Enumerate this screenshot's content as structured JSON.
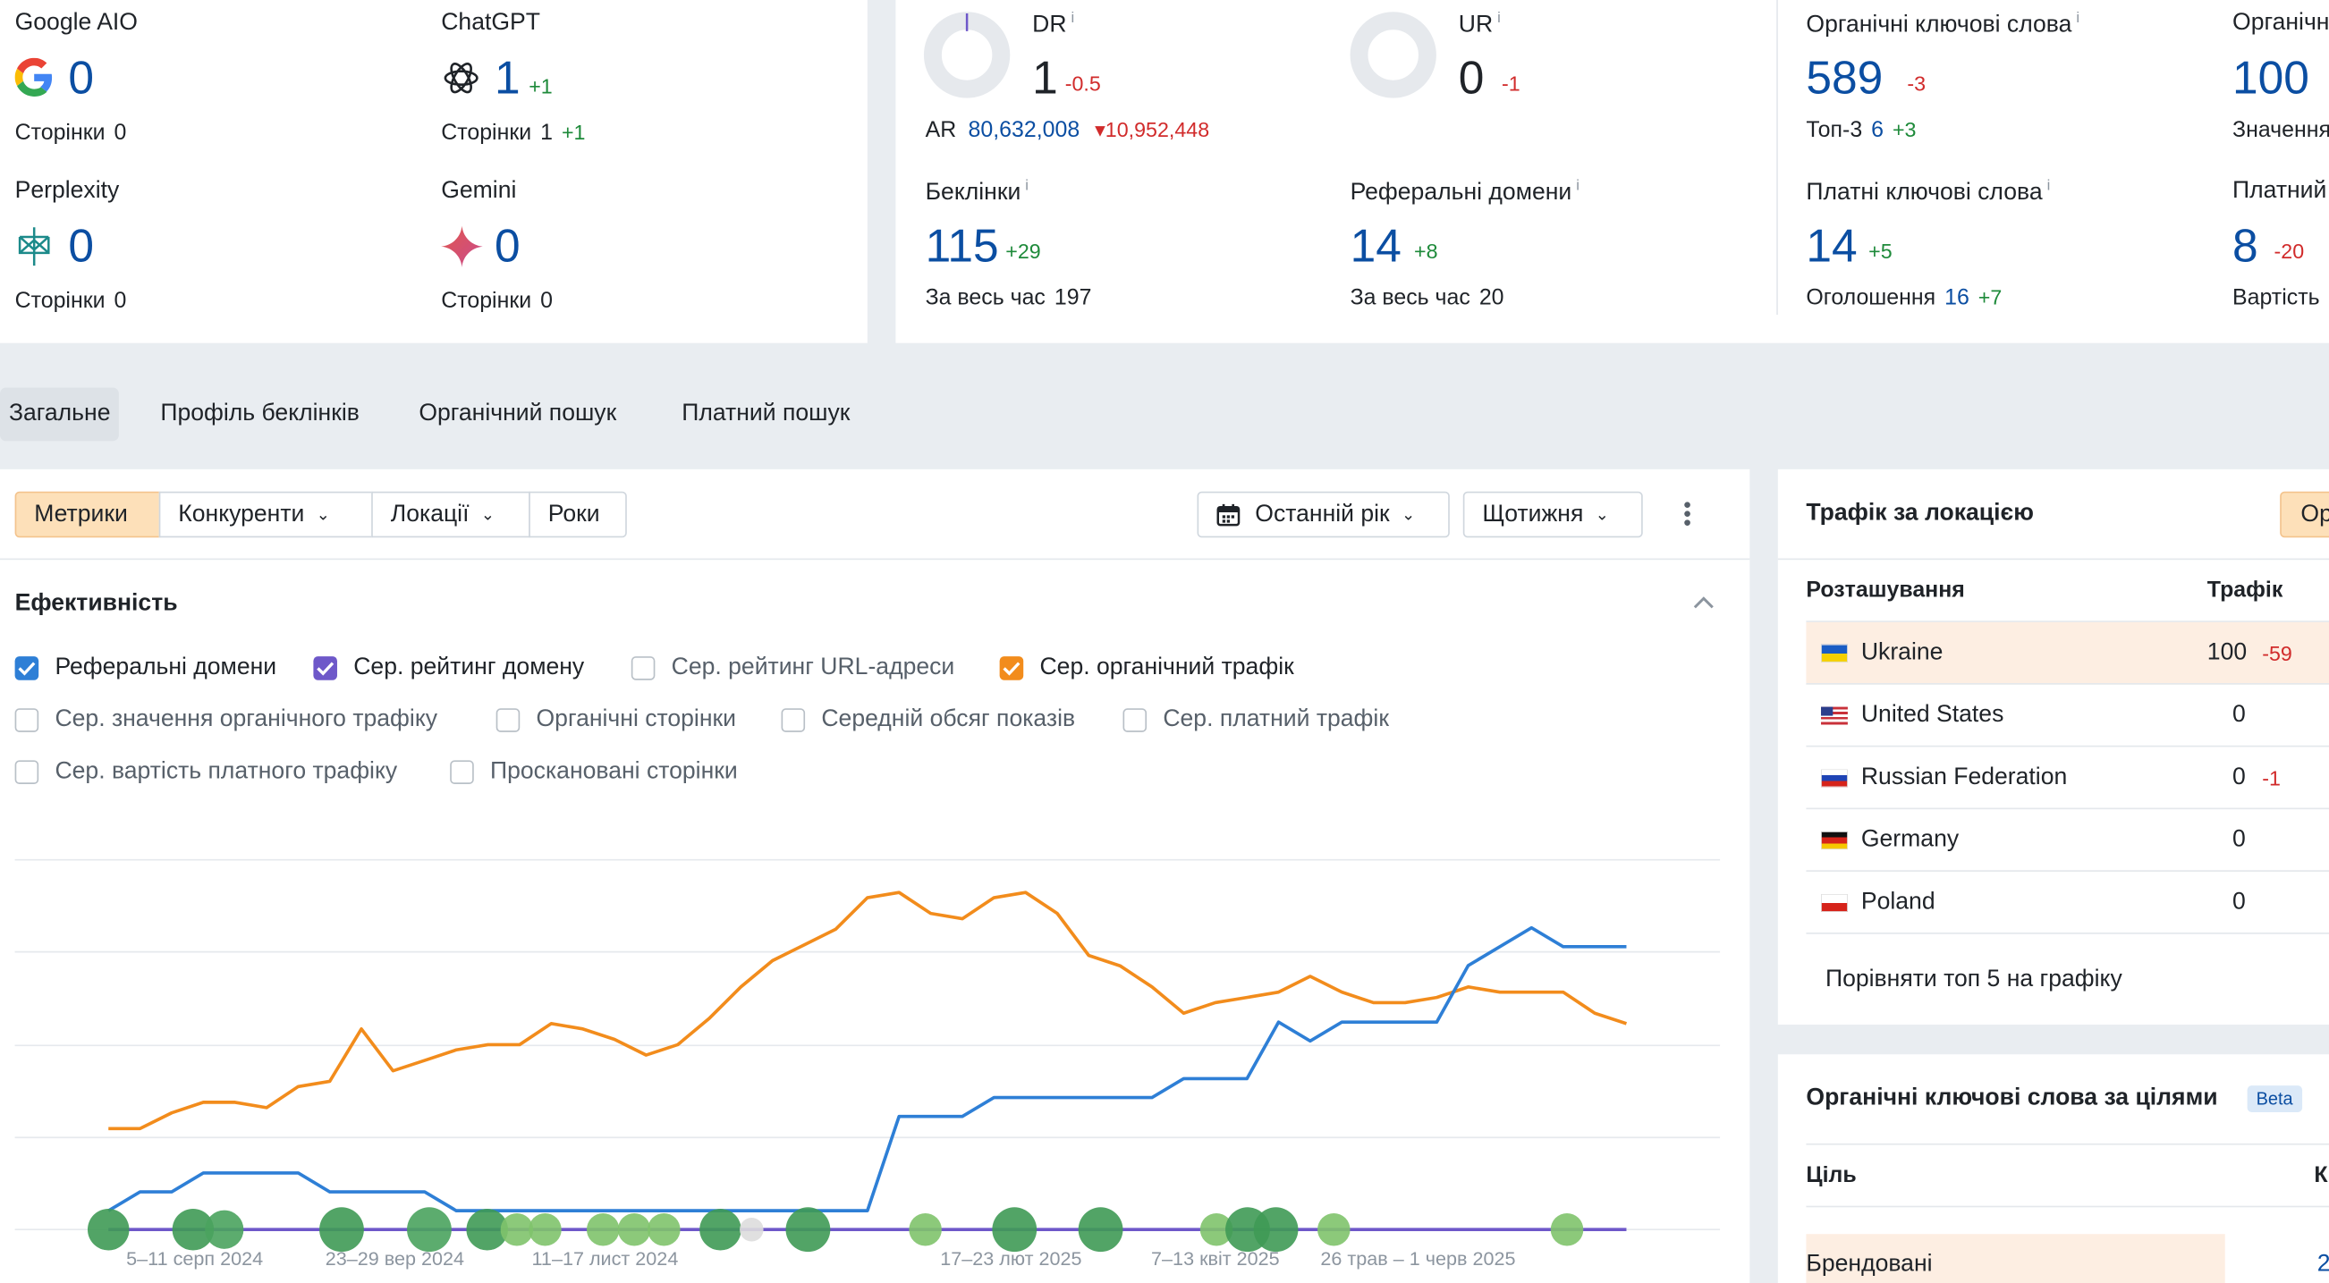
{
  "ai": {
    "google": {
      "label": "Google AIO",
      "value": "0",
      "pages_label": "Сторінки",
      "pages": "0"
    },
    "chatgpt": {
      "label": "ChatGPT",
      "value": "1",
      "delta": "+1",
      "pages_label": "Сторінки",
      "pages": "1",
      "pages_delta": "+1"
    },
    "perplexity": {
      "label": "Perplexity",
      "value": "0",
      "pages_label": "Сторінки",
      "pages": "0"
    },
    "gemini": {
      "label": "Gemini",
      "value": "0",
      "pages_label": "Сторінки",
      "pages": "0"
    }
  },
  "metrics": {
    "dr": {
      "label": "DR",
      "info": "i",
      "value": "1",
      "delta": "-0.5"
    },
    "ur": {
      "label": "UR",
      "info": "i",
      "value": "0",
      "delta": "-1"
    },
    "ar": {
      "label": "AR",
      "value": "80,632,008",
      "delta": "10,952,448"
    },
    "backlinks": {
      "label": "Беклінки",
      "info": "i",
      "value": "115",
      "delta": "+29",
      "all_time_label": "За весь час",
      "all_time": "197"
    },
    "ref_domains": {
      "label": "Реферальні домени",
      "info": "i",
      "value": "14",
      "delta": "+8",
      "all_time_label": "За весь час",
      "all_time": "20"
    },
    "organic_kw": {
      "label": "Органічні ключові слова",
      "info": "i",
      "value": "589",
      "delta": "-3",
      "top3_label": "Топ-3",
      "top3": "6",
      "top3_delta": "+3"
    },
    "organic_traffic": {
      "label": "Органічн",
      "value": "100",
      "sub": "Значення"
    },
    "paid_kw": {
      "label": "Платні ключові слова",
      "info": "i",
      "value": "14",
      "delta": "+5",
      "ads_label": "Оголошення",
      "ads": "16",
      "ads_delta": "+7"
    },
    "paid_traffic": {
      "label": "Платний",
      "value": "8",
      "delta": "-20",
      "sub": "Вартість"
    }
  },
  "tabs": [
    "Загальне",
    "Профіль беклінків",
    "Органічний пошук",
    "Платний пошук"
  ],
  "toolbar": {
    "segments": [
      "Метрики",
      "Конкуренти",
      "Локації",
      "Роки"
    ],
    "period": "Останній рік",
    "interval": "Щотижня"
  },
  "performance": {
    "title": "Ефективність",
    "checkboxes": [
      {
        "label": "Реферальні домени",
        "checked": true,
        "color": "#2e7fd6"
      },
      {
        "label": "Сер. рейтинг домену",
        "checked": true,
        "color": "#6e58c9"
      },
      {
        "label": "Сер. рейтинг URL-адреси",
        "checked": false
      },
      {
        "label": "Сер. органічний трафік",
        "checked": true,
        "color": "#f28c1c"
      },
      {
        "label": "Сер. значення органічного трафіку",
        "checked": false
      },
      {
        "label": "Органічні сторінки",
        "checked": false
      },
      {
        "label": "Середній обсяг показів",
        "checked": false
      },
      {
        "label": "Сер. платний трафік",
        "checked": false
      },
      {
        "label": "Сер. вартість платного трафіку",
        "checked": false
      },
      {
        "label": "Проскановані сторінки",
        "checked": false
      }
    ]
  },
  "chart_data": {
    "type": "line",
    "x_tick_labels": [
      "5–11 серп 2024",
      "23–29 вер 2024",
      "11–17 лист 2024",
      "17–23 лют 2025",
      "7–13 квіт 2025",
      "26 трав – 1 черв 2025"
    ],
    "series": [
      {
        "name": "Сер. органічний трафік",
        "color": "#f28c1c",
        "values": [
          55,
          55,
          58,
          60,
          60,
          59,
          63,
          64,
          74,
          66,
          68,
          70,
          71,
          71,
          75,
          74,
          72,
          69,
          71,
          76,
          82,
          87,
          90,
          93,
          99,
          100,
          96,
          95,
          99,
          100,
          96,
          88,
          86,
          82,
          77,
          79,
          80,
          81,
          84,
          81,
          79,
          79,
          80,
          82,
          81,
          81,
          81,
          77,
          75
        ]
      },
      {
        "name": "Реферальні домени",
        "color": "#2e7fd6",
        "values": [
          1,
          2,
          2,
          3,
          3,
          3,
          3,
          2,
          2,
          2,
          2,
          1,
          1,
          1,
          1,
          1,
          1,
          1,
          1,
          1,
          1,
          1,
          1,
          1,
          1,
          6,
          6,
          6,
          7,
          7,
          7,
          7,
          7,
          7,
          8,
          8,
          8,
          11,
          10,
          11,
          11,
          11,
          11,
          14,
          15,
          16,
          15,
          15,
          15
        ]
      },
      {
        "name": "Сер. рейтинг домену",
        "color": "#6e58c9",
        "values": [
          0,
          0,
          0,
          0,
          0,
          0,
          0,
          0,
          0,
          0,
          0,
          0,
          0,
          0,
          0,
          0,
          0,
          0,
          0,
          0,
          0,
          0,
          0,
          0,
          0,
          0,
          0,
          0,
          0,
          0,
          0,
          0,
          0,
          0,
          0,
          0,
          0,
          0,
          0,
          0,
          0,
          0,
          0,
          0,
          0,
          0,
          0,
          0,
          0
        ]
      }
    ]
  },
  "traffic_location": {
    "title": "Трафік за локацією",
    "filter_btn": "Ор",
    "col_location": "Розташування",
    "col_traffic": "Трафік",
    "rows": [
      {
        "country": "Ukraine",
        "traffic": "100",
        "delta": "-59"
      },
      {
        "country": "United States",
        "traffic": "0",
        "delta": ""
      },
      {
        "country": "Russian Federation",
        "traffic": "0",
        "delta": "-1"
      },
      {
        "country": "Germany",
        "traffic": "0",
        "delta": ""
      },
      {
        "country": "Poland",
        "traffic": "0",
        "delta": ""
      }
    ],
    "compare_link": "Порівняти топ 5 на графіку"
  },
  "kw_intents": {
    "title": "Органічні ключові слова за цілями",
    "badge": "Beta",
    "col_intent": "Ціль",
    "col_k": "К",
    "first_row": "Брендовані",
    "first_val": "2"
  }
}
